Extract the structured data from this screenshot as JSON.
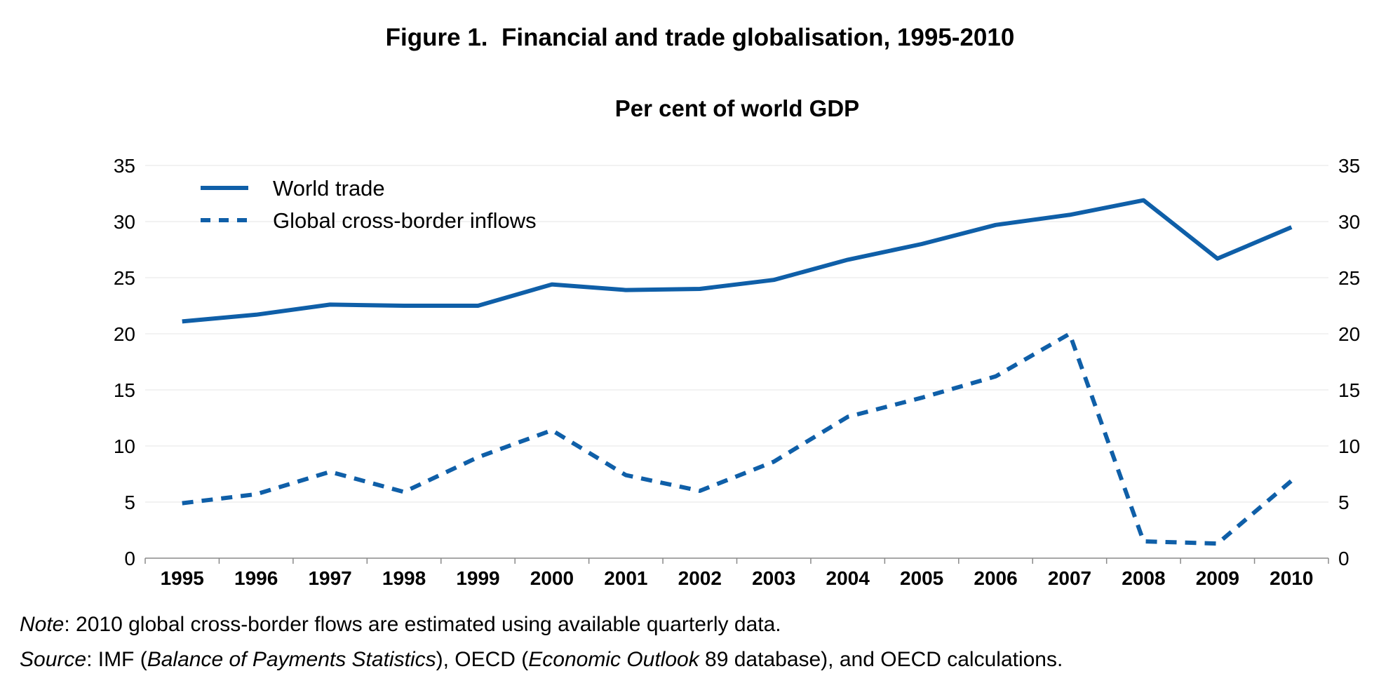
{
  "figure_title": "Figure 1.  Financial and trade globalisation, 1995-2010",
  "chart_data": {
    "type": "line",
    "title": "Per cent of world GDP",
    "x": [
      "1995",
      "1996",
      "1997",
      "1998",
      "1999",
      "2000",
      "2001",
      "2002",
      "2003",
      "2004",
      "2005",
      "2006",
      "2007",
      "2008",
      "2009",
      "2010"
    ],
    "series": [
      {
        "name": "World trade",
        "style": "solid",
        "color": "#0F5FA8",
        "values": [
          21.1,
          21.7,
          22.6,
          22.5,
          22.5,
          24.4,
          23.9,
          24.0,
          24.8,
          26.6,
          28.0,
          29.7,
          30.6,
          31.9,
          26.7,
          29.5
        ]
      },
      {
        "name": "Global cross-border inflows",
        "style": "dashed",
        "color": "#0F5FA8",
        "values": [
          4.9,
          5.7,
          7.7,
          5.9,
          9.0,
          11.4,
          7.4,
          6.0,
          8.6,
          12.6,
          14.3,
          16.2,
          20.0,
          1.5,
          1.3,
          6.9
        ]
      }
    ],
    "yticks": [
      "0",
      "5",
      "10",
      "15",
      "20",
      "25",
      "30",
      "35"
    ],
    "ylim": [
      0,
      35
    ],
    "grid": true,
    "legend_position": "top-left",
    "secondary_y_axis": "right, same scale"
  },
  "note": {
    "label": "Note",
    "text": ": 2010 global cross-border flows are estimated using available quarterly data."
  },
  "source": {
    "label": "Source",
    "t1": ": IMF (",
    "i1": "Balance of Payments Statistics",
    "t2": "), OECD (",
    "i2": "Economic Outlook",
    "t3": " 89 database), and OECD calculations."
  }
}
